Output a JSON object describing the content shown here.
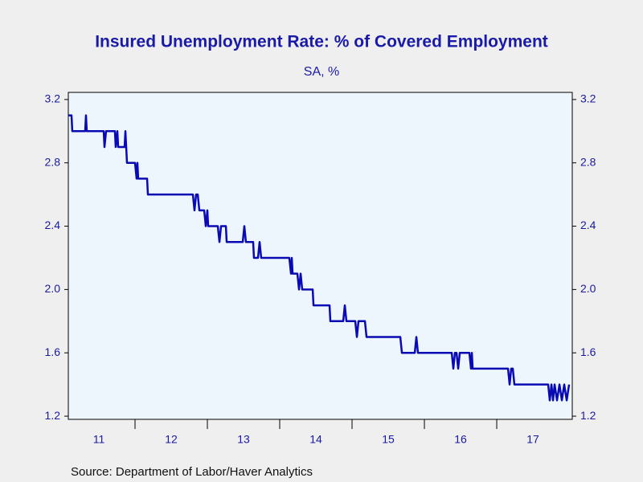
{
  "chart_data": {
    "type": "line",
    "title": "Insured Unemployment Rate: % of Covered Employment",
    "subtitle": "SA, %",
    "source": "Source:  Department of Labor/Haver Analytics",
    "x": [
      2011.078,
      2011.122,
      2011.133,
      2011.311,
      2011.322,
      2011.333,
      2011.567,
      2011.578,
      2011.6,
      2011.722,
      2011.733,
      2011.756,
      2011.767,
      2011.856,
      2011.867,
      2011.878,
      2011.889,
      2012.0,
      2012.022,
      2012.033,
      2012.044,
      2012.167,
      2012.178,
      2012.8,
      2012.822,
      2012.844,
      2012.867,
      2012.889,
      2012.956,
      2012.978,
      2013.0,
      2013.011,
      2013.144,
      2013.167,
      2013.189,
      2013.256,
      2013.267,
      2013.489,
      2013.511,
      2013.533,
      2013.633,
      2013.644,
      2013.7,
      2013.722,
      2013.744,
      2014.133,
      2014.156,
      2014.167,
      2014.178,
      2014.244,
      2014.267,
      2014.289,
      2014.311,
      2014.456,
      2014.467,
      2014.689,
      2014.7,
      2014.878,
      2014.9,
      2014.922,
      2015.044,
      2015.067,
      2015.089,
      2015.178,
      2015.2,
      2015.667,
      2015.689,
      2015.867,
      2015.889,
      2015.911,
      2016.378,
      2016.4,
      2016.422,
      2016.444,
      2016.467,
      2016.489,
      2016.622,
      2016.644,
      2016.656,
      2016.667,
      2017.156,
      2017.178,
      2017.2,
      2017.222,
      2017.244,
      2017.711,
      2017.733,
      2017.756,
      2017.778,
      2017.8,
      2017.833,
      2017.867,
      2017.9,
      2017.933,
      2017.967,
      2018.0
    ],
    "series": [
      {
        "name": "Insured Unemployment Rate",
        "color": "#0a0ab4",
        "values": [
          3.1,
          3.1,
          3.0,
          3.0,
          3.1,
          3.0,
          3.0,
          2.9,
          3.0,
          3.0,
          2.9,
          3.0,
          2.9,
          2.9,
          3.0,
          2.9,
          2.8,
          2.8,
          2.7,
          2.8,
          2.7,
          2.7,
          2.6,
          2.6,
          2.5,
          2.6,
          2.6,
          2.5,
          2.5,
          2.4,
          2.5,
          2.4,
          2.4,
          2.3,
          2.4,
          2.4,
          2.3,
          2.3,
          2.4,
          2.3,
          2.3,
          2.2,
          2.2,
          2.3,
          2.2,
          2.2,
          2.1,
          2.2,
          2.1,
          2.1,
          2.0,
          2.1,
          2.0,
          2.0,
          1.9,
          1.9,
          1.8,
          1.8,
          1.9,
          1.8,
          1.8,
          1.7,
          1.8,
          1.8,
          1.7,
          1.7,
          1.6,
          1.6,
          1.7,
          1.6,
          1.6,
          1.5,
          1.6,
          1.6,
          1.5,
          1.6,
          1.6,
          1.5,
          1.6,
          1.5,
          1.5,
          1.4,
          1.5,
          1.5,
          1.4,
          1.4,
          1.3,
          1.4,
          1.3,
          1.4,
          1.3,
          1.4,
          1.3,
          1.4,
          1.3,
          1.4
        ]
      }
    ],
    "xlim": [
      2011.078,
      2018.044
    ],
    "xticks": [
      {
        "value": 2011,
        "label": "11"
      },
      {
        "value": 2012,
        "label": "12"
      },
      {
        "value": 2013,
        "label": "13"
      },
      {
        "value": 2014,
        "label": "14"
      },
      {
        "value": 2015,
        "label": "15"
      },
      {
        "value": 2016,
        "label": "16"
      },
      {
        "value": 2017,
        "label": "17"
      }
    ],
    "ylim": [
      1.18,
      3.245
    ],
    "yticks": [
      1.2,
      1.6,
      {
        "value": 2,
        "label": "2.0"
      },
      2.4,
      2.8,
      3.2
    ],
    "right_axis": true,
    "grid": false
  }
}
